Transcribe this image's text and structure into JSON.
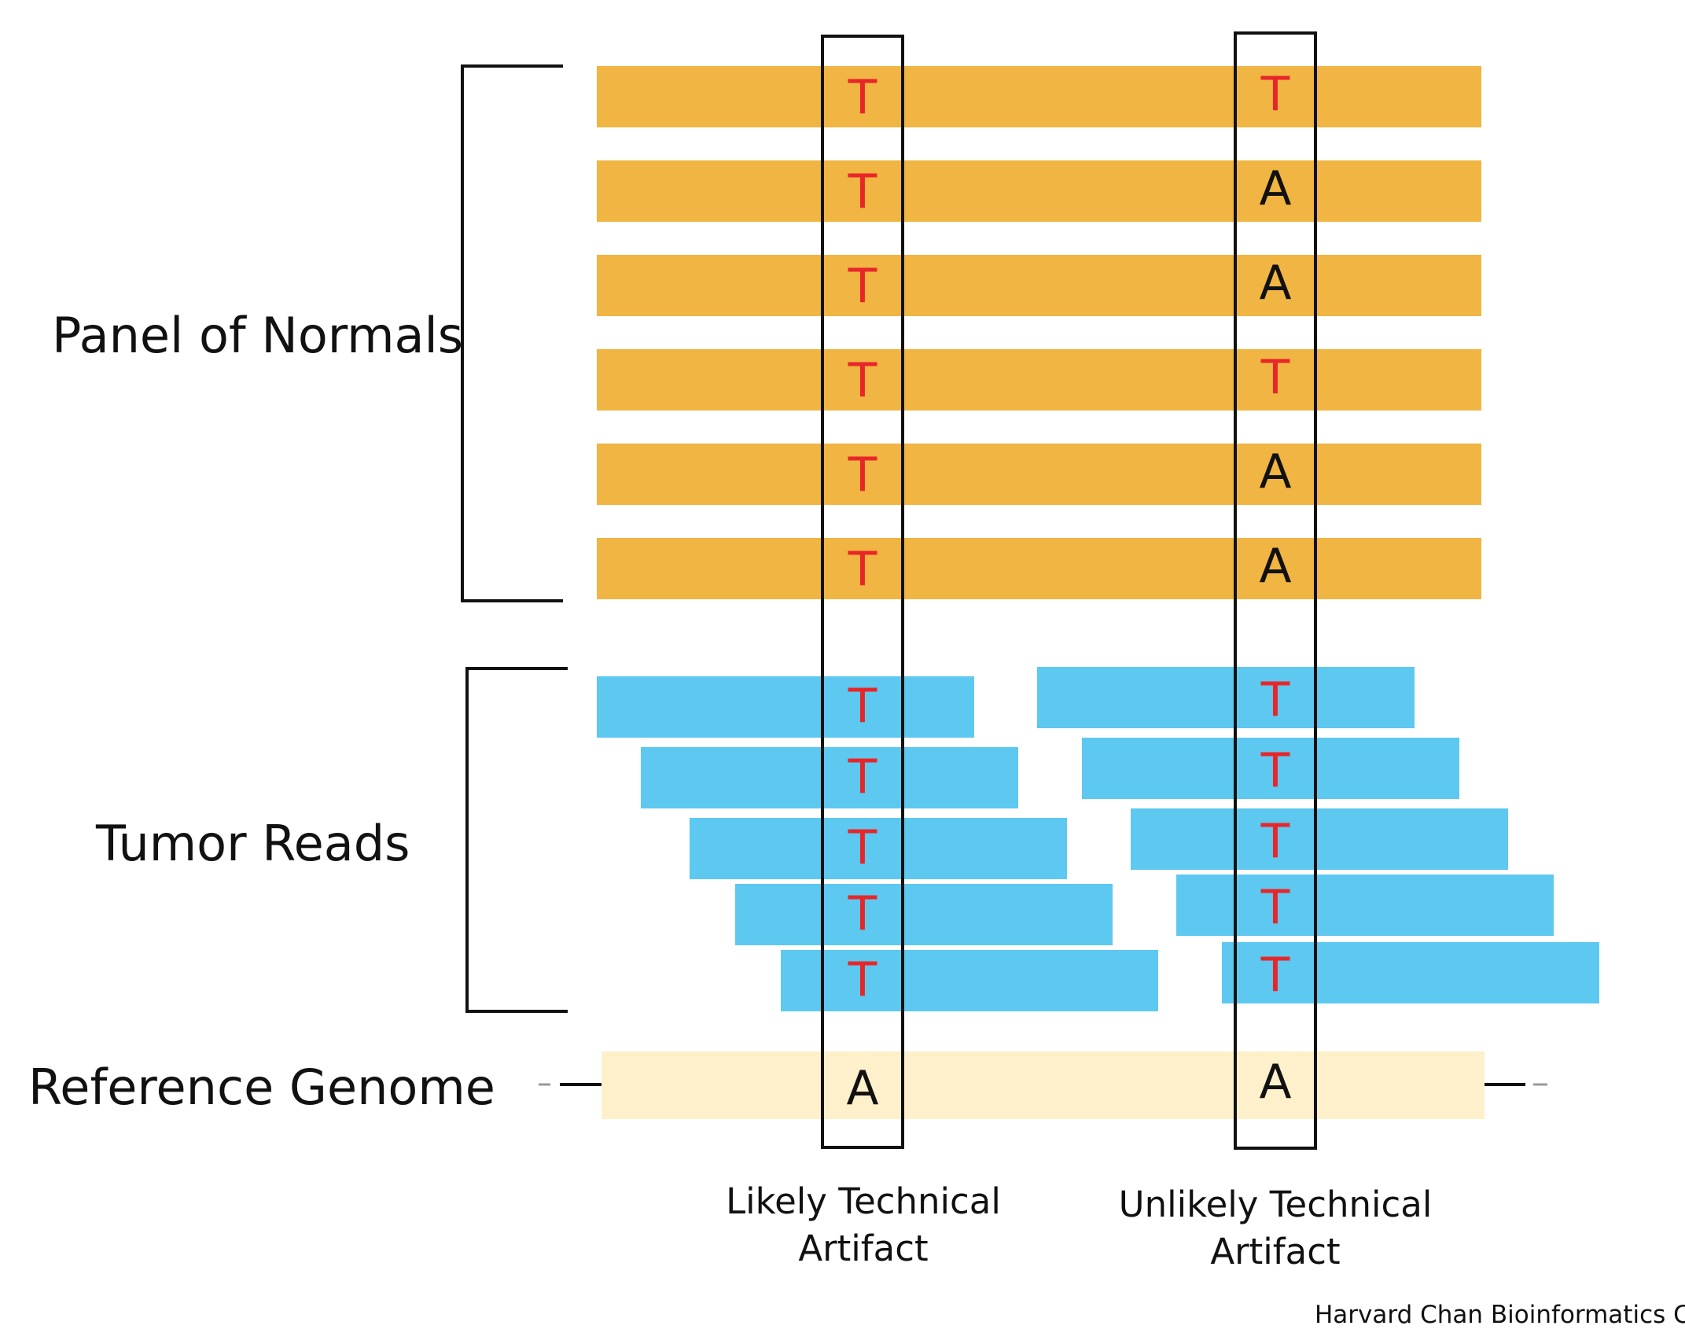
{
  "labels": {
    "panel_of_normals": "Panel of Normals",
    "tumor_reads": "Tumor Reads",
    "reference_genome": "Reference Genome"
  },
  "captions": {
    "left": [
      "Likely Technical",
      "Artifact"
    ],
    "right": [
      "Unlikely Technical",
      "Artifact"
    ]
  },
  "credit": "Harvard Chan Bioinformatics Core",
  "colors": {
    "normal_bar": "#F0B542",
    "tumor_bar": "#5DC8F0",
    "reference_bar": "#FDF0CA",
    "variant_base": "#E8262A",
    "reference_base": "#111111",
    "outline": "#111111"
  },
  "panel_of_normals": [
    {
      "left": "T",
      "right": "T"
    },
    {
      "left": "T",
      "right": "A"
    },
    {
      "left": "T",
      "right": "A"
    },
    {
      "left": "T",
      "right": "T"
    },
    {
      "left": "T",
      "right": "A"
    },
    {
      "left": "T",
      "right": "A"
    }
  ],
  "tumor_reads": {
    "left": [
      "T",
      "T",
      "T",
      "T",
      "T"
    ],
    "right": [
      "T",
      "T",
      "T",
      "T",
      "T"
    ]
  },
  "reference_genome": {
    "left": "A",
    "right": "A"
  }
}
